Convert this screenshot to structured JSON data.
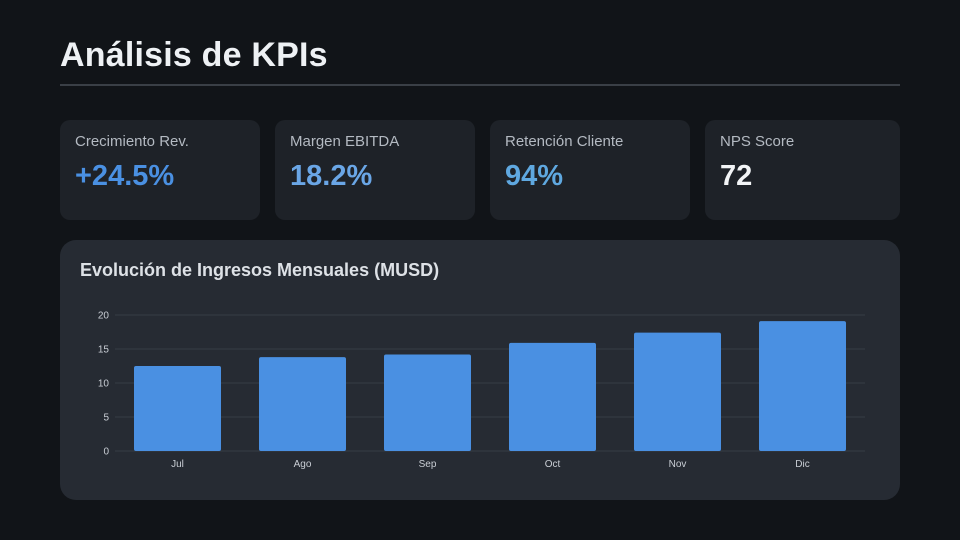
{
  "header": {
    "title": "Análisis de KPIs"
  },
  "kpis": [
    {
      "label": "Crecimiento Rev.",
      "value": "+24.5%",
      "color": "#4a90e2"
    },
    {
      "label": "Margen EBITDA",
      "value": "18.2%",
      "color": "#6aa6e6"
    },
    {
      "label": "Retención Cliente",
      "value": "94%",
      "color": "#5fa8e0"
    },
    {
      "label": "NPS Score",
      "value": "72",
      "color": "#f2f4f6"
    }
  ],
  "colors": {
    "bar": "#4a90e2",
    "grid": "#363c45"
  },
  "chart_data": {
    "type": "bar",
    "title": "Evolución de Ingresos Mensuales (MUSD)",
    "categories": [
      "Jul",
      "Ago",
      "Sep",
      "Oct",
      "Nov",
      "Dic"
    ],
    "values": [
      12.5,
      13.8,
      14.2,
      15.9,
      17.4,
      19.1
    ],
    "ylim": [
      0,
      20
    ],
    "yticks": [
      0,
      5,
      10,
      15,
      20
    ],
    "xlabel": "",
    "ylabel": "",
    "grid": true
  }
}
